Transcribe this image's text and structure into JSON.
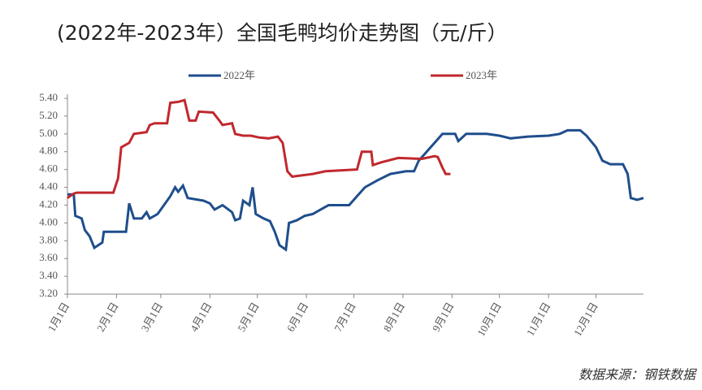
{
  "chart_data": {
    "type": "line",
    "title": "(2022年-2023年）全国毛鸭均价走势图（元/斤）",
    "source": "数据来源：钢铁数据",
    "xlim": [
      1,
      365
    ],
    "xticks": [
      {
        "value": 1,
        "label": "1月1日"
      },
      {
        "value": 32,
        "label": "2月1日"
      },
      {
        "value": 60,
        "label": "3月1日"
      },
      {
        "value": 91,
        "label": "4月1日"
      },
      {
        "value": 121,
        "label": "5月1日"
      },
      {
        "value": 152,
        "label": "6月1日"
      },
      {
        "value": 182,
        "label": "7月1日"
      },
      {
        "value": 213,
        "label": "8月1日"
      },
      {
        "value": 244,
        "label": "9月1日"
      },
      {
        "value": 274,
        "label": "10月1日"
      },
      {
        "value": 305,
        "label": "11月1日"
      },
      {
        "value": 335,
        "label": "12月1日"
      }
    ],
    "ylim": [
      3.2,
      5.4
    ],
    "yticks": [
      {
        "value": 3.2,
        "label": "3.20"
      },
      {
        "value": 3.4,
        "label": "3.40"
      },
      {
        "value": 3.6,
        "label": "3.60"
      },
      {
        "value": 3.8,
        "label": "3.80"
      },
      {
        "value": 4.0,
        "label": "4.00"
      },
      {
        "value": 4.2,
        "label": "4.20"
      },
      {
        "value": 4.4,
        "label": "4.40"
      },
      {
        "value": 4.6,
        "label": "4.60"
      },
      {
        "value": 4.8,
        "label": "4.80"
      },
      {
        "value": 5.0,
        "label": "5.00"
      },
      {
        "value": 5.2,
        "label": "5.20"
      },
      {
        "value": 5.4,
        "label": "5.40"
      }
    ],
    "series": [
      {
        "name": "2022年",
        "color": "#1f4e8c",
        "x": [
          1,
          5,
          6,
          10,
          12,
          15,
          18,
          23,
          24,
          38,
          40,
          43,
          48,
          51,
          53,
          58,
          64,
          66,
          69,
          71,
          74,
          77,
          87,
          91,
          94,
          99,
          105,
          107,
          110,
          112,
          116,
          118,
          120,
          125,
          129,
          132,
          135,
          139,
          141,
          146,
          151,
          156,
          161,
          166,
          179,
          184,
          189,
          197,
          205,
          215,
          220,
          223,
          233,
          238,
          246,
          248,
          253,
          266,
          274,
          281,
          292,
          305,
          312,
          317,
          325,
          329,
          335,
          339,
          344,
          352,
          355,
          357,
          361,
          365
        ],
        "values": [
          4.32,
          4.32,
          4.08,
          4.05,
          3.92,
          3.85,
          3.72,
          3.78,
          3.9,
          3.9,
          4.22,
          4.05,
          4.05,
          4.12,
          4.05,
          4.1,
          4.25,
          4.3,
          4.4,
          4.35,
          4.42,
          4.28,
          4.25,
          4.22,
          4.15,
          4.2,
          4.12,
          4.03,
          4.05,
          4.25,
          4.2,
          4.4,
          4.1,
          4.05,
          4.02,
          3.9,
          3.75,
          3.7,
          4.0,
          4.03,
          4.08,
          4.1,
          4.15,
          4.2,
          4.2,
          4.3,
          4.4,
          4.48,
          4.55,
          4.58,
          4.58,
          4.7,
          4.9,
          5.0,
          5.0,
          4.92,
          5.0,
          5.0,
          4.98,
          4.95,
          4.97,
          4.98,
          5.0,
          5.04,
          5.04,
          4.98,
          4.85,
          4.7,
          4.66,
          4.66,
          4.55,
          4.28,
          4.26,
          4.28
        ]
      },
      {
        "name": "2023年",
        "color": "#c0282d",
        "x": [
          1,
          5,
          7,
          30,
          33,
          35,
          40,
          43,
          51,
          53,
          56,
          64,
          66,
          71,
          75,
          78,
          82,
          84,
          93,
          97,
          99,
          105,
          107,
          112,
          117,
          122,
          128,
          134,
          137,
          140,
          143,
          156,
          164,
          184,
          187,
          193,
          194,
          199,
          210,
          225,
          233,
          235,
          238,
          240,
          243
        ],
        "values": [
          4.28,
          4.33,
          4.34,
          4.34,
          4.5,
          4.85,
          4.9,
          5.0,
          5.02,
          5.1,
          5.12,
          5.12,
          5.35,
          5.36,
          5.38,
          5.15,
          5.15,
          5.25,
          5.24,
          5.15,
          5.1,
          5.12,
          5.0,
          4.98,
          4.98,
          4.96,
          4.95,
          4.97,
          4.9,
          4.58,
          4.52,
          4.55,
          4.58,
          4.6,
          4.8,
          4.8,
          4.65,
          4.68,
          4.73,
          4.72,
          4.75,
          4.74,
          4.62,
          4.55,
          4.55
        ]
      }
    ]
  }
}
